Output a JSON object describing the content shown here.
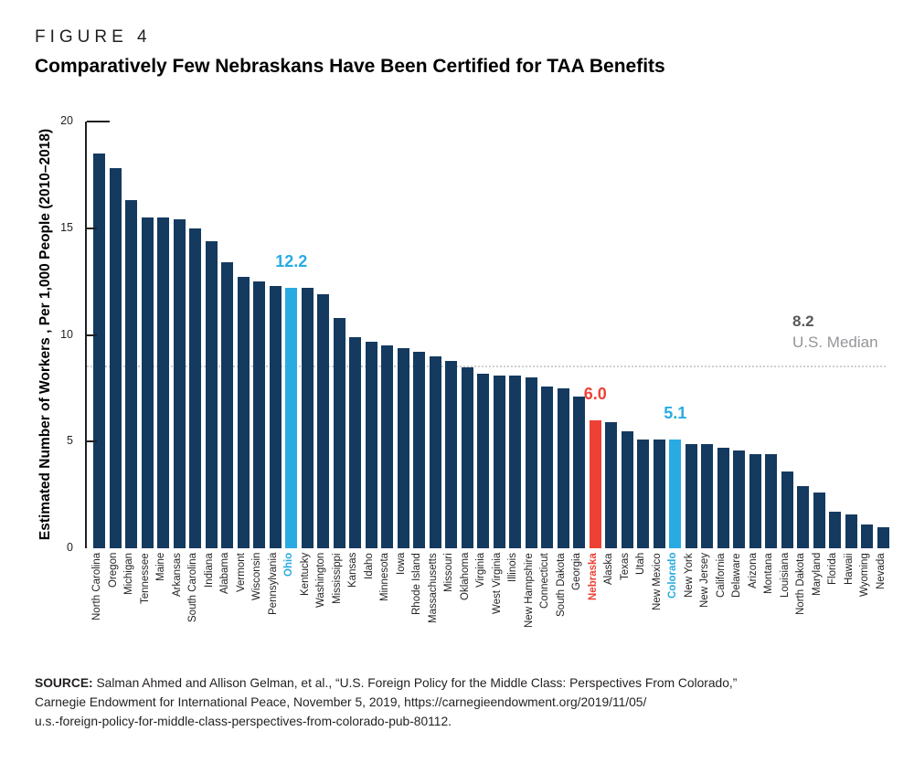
{
  "figure": {
    "label": "FIGURE 4",
    "title": "Comparatively Few Nebraskans Have Been Certified for TAA Benefits"
  },
  "chart_data": {
    "type": "bar",
    "title": "Comparatively Few Nebraskans Have Been Certified for TAA Benefits",
    "xlabel": "",
    "ylabel": "Estimated Number of Workers , Per 1,000 People (2010–2018)",
    "ylim": [
      0,
      20
    ],
    "yticks": [
      0,
      5,
      10,
      15,
      20
    ],
    "grid": "off",
    "categories": [
      "North Carolina",
      "Oregon",
      "Michigan",
      "Tennessee",
      "Maine",
      "Arkansas",
      "South Carolina",
      "Indiana",
      "Alabama",
      "Vermont",
      "Wisconsin",
      "Pennsylvania",
      "Ohio",
      "Kentucky",
      "Washington",
      "Mississippi",
      "Kansas",
      "Idaho",
      "Minnesota",
      "Iowa",
      "Rhode Island",
      "Massachusetts",
      "Missouri",
      "Oklahoma",
      "Virginia",
      "West Virginia",
      "Illinois",
      "New Hampshire",
      "Connecticut",
      "South Dakota",
      "Georgia",
      "Nebraska",
      "Alaska",
      "Texas",
      "Utah",
      "New Mexico",
      "Colorado",
      "New York",
      "New Jersey",
      "California",
      "Delaware",
      "Arizona",
      "Montana",
      "Louisiana",
      "North Dakota",
      "Maryland",
      "Florida",
      "Hawaii",
      "Wyoming",
      "Nevada"
    ],
    "values": [
      18.5,
      17.8,
      16.3,
      15.5,
      15.5,
      15.4,
      15.0,
      14.4,
      13.4,
      12.7,
      12.5,
      12.3,
      12.2,
      12.2,
      11.9,
      10.8,
      9.9,
      9.7,
      9.5,
      9.4,
      9.2,
      9.0,
      8.8,
      8.5,
      8.2,
      8.1,
      8.1,
      8.0,
      7.6,
      7.5,
      7.1,
      6.0,
      5.9,
      5.5,
      5.1,
      5.1,
      5.1,
      4.9,
      4.9,
      4.7,
      4.6,
      4.4,
      4.4,
      3.6,
      2.9,
      2.6,
      1.7,
      1.6,
      1.1,
      1.0
    ],
    "highlights": [
      {
        "state": "Ohio",
        "value_label": "12.2",
        "color": "#29abe2"
      },
      {
        "state": "Nebraska",
        "value_label": "6.0",
        "color": "#ee4136"
      },
      {
        "state": "Colorado",
        "value_label": "5.1",
        "color": "#29abe2"
      }
    ],
    "median": {
      "value": 8.2,
      "label": "U.S. Median",
      "line_at": 8.5
    },
    "colors": {
      "bar": "#143a5f",
      "highlight_blue": "#29abe2",
      "highlight_red": "#ee4136",
      "median_line": "#cfcfcf",
      "median_value_text": "#58595b",
      "median_label_text": "#939598",
      "axis": "#231f20"
    },
    "legend": "none"
  },
  "source": {
    "prefix": "SOURCE:",
    "line1_rest": " Salman Ahmed and Allison Gelman, et al., “U.S. Foreign Policy for the Middle Class: Perspectives From Colorado,”",
    "line2": "Carnegie Endowment for International Peace, November 5, 2019, https://carnegieendowment.org/2019/11/05/",
    "line3": "u.s.-foreign-policy-for-middle-class-perspectives-from-colorado-pub-80112."
  }
}
